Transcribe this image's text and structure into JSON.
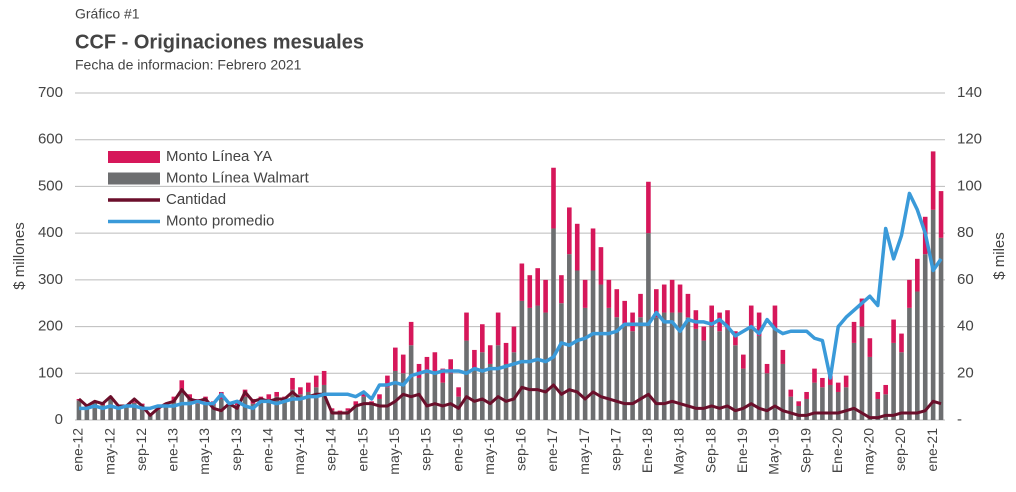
{
  "chart_data": {
    "type": "bar",
    "supertitle": "Gráfico #1",
    "title": "CCF - Originaciones mesuales",
    "subtitle": "Fecha de informacion: Febrero 2021",
    "ylabel": "$ millones",
    "y2label": "$ miles",
    "ylim": [
      0,
      700
    ],
    "yticks": [
      0,
      100,
      200,
      300,
      400,
      500,
      600,
      700
    ],
    "y2lim": [
      0,
      140
    ],
    "y2ticks": [
      {
        "value": 0,
        "label": "-"
      },
      20,
      40,
      60,
      80,
      100,
      120,
      140
    ],
    "grid": true,
    "legend": "upper left",
    "categories": [
      "ene-12",
      null,
      null,
      null,
      "may-12",
      null,
      null,
      null,
      "sep-12",
      null,
      null,
      null,
      "ene-13",
      null,
      null,
      null,
      "may-13",
      null,
      null,
      null,
      "sep-13",
      null,
      null,
      null,
      "ene-14",
      null,
      null,
      null,
      "may-14",
      null,
      null,
      null,
      "sep-14",
      null,
      null,
      null,
      "ene-15",
      null,
      null,
      null,
      "may-15",
      null,
      null,
      null,
      "sep-15",
      null,
      null,
      null,
      "ene-16",
      null,
      null,
      null,
      "may-16",
      null,
      null,
      null,
      "sep-16",
      null,
      null,
      null,
      "ene-17",
      null,
      null,
      null,
      "may-17",
      null,
      null,
      null,
      "sep-17",
      null,
      null,
      null,
      "Ene-18",
      null,
      null,
      null,
      "May-18",
      null,
      null,
      null,
      "Sep-18",
      null,
      null,
      null,
      "Ene-19",
      null,
      null,
      null,
      "May-19",
      null,
      null,
      null,
      "Sep-19",
      null,
      null,
      null,
      "Ene-20",
      null,
      null,
      null,
      "may-20",
      null,
      null,
      null,
      "sep-20",
      null,
      null,
      null,
      "ene-21",
      null
    ],
    "series": [
      {
        "name": "Monto Línea YA",
        "color": "#d6175a",
        "kind": "bar",
        "values": [
          3,
          3,
          3,
          3,
          3,
          3,
          3,
          3,
          3,
          2,
          3,
          3,
          10,
          25,
          10,
          10,
          10,
          8,
          15,
          5,
          8,
          15,
          10,
          10,
          10,
          10,
          8,
          25,
          15,
          20,
          25,
          30,
          5,
          5,
          5,
          8,
          10,
          5,
          10,
          25,
          50,
          40,
          50,
          30,
          35,
          40,
          30,
          30,
          20,
          60,
          40,
          60,
          40,
          70,
          45,
          55,
          80,
          70,
          80,
          70,
          130,
          60,
          100,
          100,
          60,
          90,
          80,
          60,
          60,
          50,
          40,
          50,
          110,
          60,
          60,
          70,
          60,
          50,
          40,
          30,
          45,
          40,
          40,
          30,
          30,
          50,
          50,
          20,
          50,
          30,
          15,
          10,
          15,
          30,
          20,
          20,
          20,
          25,
          45,
          60,
          40,
          15,
          20,
          50,
          40,
          60,
          70,
          80,
          125,
          100
        ]
      },
      {
        "name": "Monto Línea Walmart",
        "color": "#6d6e70",
        "kind": "bar",
        "values": [
          42,
          27,
          37,
          32,
          47,
          27,
          27,
          37,
          32,
          13,
          22,
          32,
          40,
          60,
          45,
          35,
          40,
          32,
          45,
          30,
          32,
          50,
          35,
          40,
          45,
          50,
          42,
          65,
          55,
          60,
          70,
          75,
          20,
          15,
          20,
          32,
          50,
          35,
          45,
          70,
          105,
          100,
          160,
          90,
          100,
          105,
          80,
          100,
          50,
          170,
          110,
          145,
          120,
          160,
          120,
          145,
          255,
          240,
          245,
          230,
          410,
          250,
          355,
          320,
          240,
          320,
          290,
          240,
          220,
          205,
          190,
          220,
          400,
          220,
          230,
          230,
          230,
          220,
          195,
          170,
          200,
          190,
          195,
          160,
          110,
          195,
          180,
          100,
          195,
          120,
          50,
          30,
          45,
          80,
          70,
          75,
          60,
          70,
          165,
          200,
          135,
          45,
          55,
          165,
          145,
          240,
          275,
          355,
          450,
          390
        ]
      },
      {
        "name": "Cantidad",
        "color": "#6b0f2b",
        "kind": "line",
        "values": [
          45,
          30,
          40,
          35,
          50,
          30,
          30,
          45,
          30,
          10,
          25,
          35,
          40,
          65,
          45,
          40,
          45,
          25,
          20,
          35,
          25,
          60,
          40,
          45,
          40,
          45,
          45,
          60,
          45,
          50,
          55,
          55,
          15,
          15,
          15,
          30,
          35,
          35,
          30,
          30,
          40,
          55,
          50,
          55,
          30,
          35,
          30,
          35,
          25,
          50,
          40,
          45,
          35,
          50,
          40,
          45,
          70,
          65,
          65,
          60,
          75,
          55,
          65,
          60,
          45,
          60,
          50,
          45,
          40,
          35,
          35,
          45,
          55,
          35,
          35,
          40,
          35,
          30,
          25,
          25,
          30,
          25,
          30,
          20,
          25,
          35,
          25,
          20,
          30,
          20,
          15,
          10,
          10,
          15,
          15,
          15,
          15,
          20,
          25,
          15,
          5,
          5,
          10,
          10,
          15,
          15,
          15,
          20,
          40,
          35
        ]
      },
      {
        "name": "Monto promedio",
        "color": "#3a9ad9",
        "kind": "line",
        "axis": "y2",
        "values": [
          5,
          5,
          6,
          5,
          6,
          5,
          6,
          6,
          5,
          5,
          6,
          6,
          6,
          7,
          7,
          8,
          7,
          7,
          11,
          7,
          8,
          6,
          5,
          8,
          8,
          7,
          8,
          9,
          9,
          10,
          10,
          11,
          11,
          11,
          11,
          10,
          12,
          9,
          15,
          15,
          16,
          15,
          19,
          20,
          21,
          20,
          21,
          21,
          21,
          20,
          22,
          21,
          22,
          22,
          23,
          24,
          25,
          25,
          26,
          25,
          27,
          33,
          32,
          34,
          35,
          37,
          37,
          37,
          38,
          41,
          41,
          41,
          41,
          46,
          42,
          42,
          38,
          43,
          42,
          42,
          41,
          43,
          40,
          36,
          38,
          40,
          37,
          43,
          39,
          37,
          38,
          38,
          38,
          35,
          34,
          18,
          40,
          44,
          47,
          50,
          53,
          49,
          82,
          69,
          79,
          97,
          90,
          80,
          64,
          69
        ]
      }
    ]
  }
}
